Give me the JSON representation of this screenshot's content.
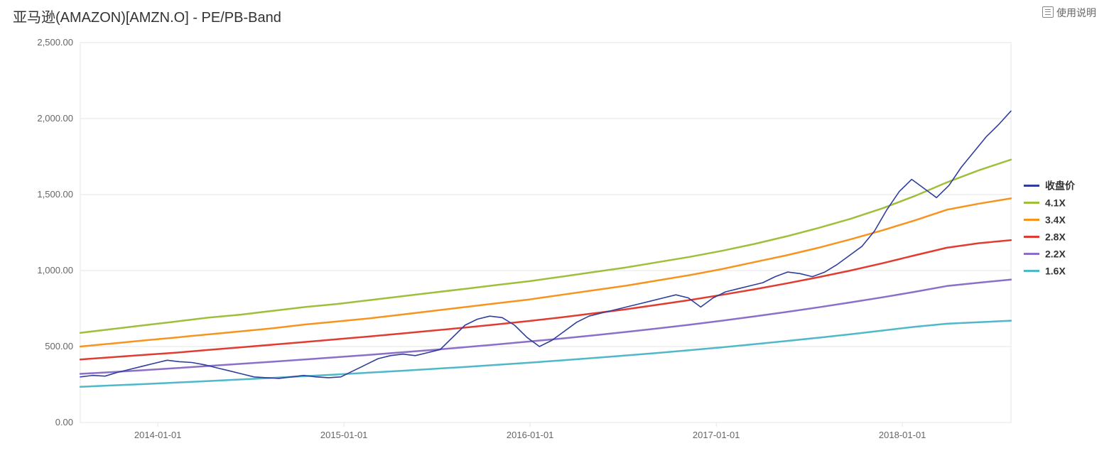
{
  "header": {
    "title": "亚马逊(AMAZON)[AMZN.O] - PE/PB-Band",
    "help_label": "使用说明"
  },
  "chart": {
    "type": "line",
    "background_color": "#ffffff",
    "plot_border_color": "#e6e6e6",
    "grid_color": "#e6e6e6",
    "axis_label_color": "#666666",
    "axis_label_fontsize": 13,
    "line_width_bands": 2.5,
    "line_width_price": 1.6,
    "y_axis": {
      "min": 0,
      "max": 2500,
      "tick_step": 500,
      "tick_labels": [
        "0.00",
        "500.00",
        "1,000.00",
        "1,500.00",
        "2,000.00",
        "2,500.00"
      ]
    },
    "x_axis": {
      "min": 0,
      "max": 60,
      "tick_positions": [
        5,
        17,
        29,
        41,
        53
      ],
      "tick_labels": [
        "2014-01-01",
        "2015-01-01",
        "2016-01-01",
        "2017-01-01",
        "2018-01-01"
      ]
    },
    "legend": {
      "position": "right",
      "item_spacing": 24,
      "swatch_width": 22
    },
    "series": [
      {
        "id": "close",
        "label": "收盘价",
        "color": "#2f3e9e",
        "kind": "price",
        "values": [
          300,
          310,
          305,
          330,
          350,
          370,
          390,
          410,
          400,
          395,
          380,
          360,
          340,
          320,
          300,
          295,
          290,
          300,
          310,
          300,
          295,
          300,
          340,
          380,
          420,
          440,
          450,
          440,
          460,
          480,
          560,
          640,
          680,
          700,
          690,
          640,
          560,
          500,
          540,
          600,
          660,
          700,
          720,
          740,
          760,
          780,
          800,
          820,
          840,
          820,
          760,
          820,
          860,
          880,
          900,
          920,
          960,
          990,
          980,
          960,
          990,
          1040,
          1100,
          1160,
          1260,
          1400,
          1520,
          1600,
          1540,
          1480,
          1560,
          1680,
          1780,
          1880,
          1960,
          2050
        ]
      },
      {
        "id": "band41",
        "label": "4.1X",
        "color": "#9fbf3b",
        "kind": "band",
        "values": [
          590,
          615,
          640,
          665,
          690,
          710,
          735,
          760,
          780,
          805,
          830,
          855,
          880,
          905,
          930,
          960,
          990,
          1020,
          1055,
          1090,
          1130,
          1175,
          1225,
          1280,
          1340,
          1410,
          1490,
          1580,
          1660,
          1730
        ]
      },
      {
        "id": "band34",
        "label": "3.4X",
        "color": "#f7941e",
        "kind": "band",
        "values": [
          500,
          520,
          540,
          560,
          580,
          600,
          620,
          645,
          665,
          685,
          710,
          735,
          760,
          785,
          810,
          840,
          870,
          900,
          935,
          970,
          1010,
          1055,
          1100,
          1150,
          1205,
          1265,
          1330,
          1400,
          1440,
          1475
        ]
      },
      {
        "id": "band28",
        "label": "2.8X",
        "color": "#e03c31",
        "kind": "band",
        "values": [
          415,
          430,
          445,
          460,
          478,
          495,
          512,
          530,
          548,
          566,
          585,
          605,
          625,
          646,
          668,
          692,
          718,
          745,
          775,
          806,
          840,
          876,
          915,
          956,
          1000,
          1048,
          1100,
          1150,
          1180,
          1200
        ]
      },
      {
        "id": "band22",
        "label": "2.2X",
        "color": "#8b6fc9",
        "kind": "band",
        "values": [
          320,
          332,
          345,
          358,
          372,
          386,
          400,
          415,
          430,
          445,
          461,
          478,
          496,
          514,
          533,
          553,
          574,
          596,
          619,
          644,
          670,
          698,
          727,
          758,
          790,
          824,
          860,
          898,
          920,
          940
        ]
      },
      {
        "id": "band16",
        "label": "1.6X",
        "color": "#4fb8c9",
        "kind": "band",
        "values": [
          235,
          244,
          253,
          263,
          273,
          283,
          294,
          305,
          316,
          328,
          340,
          353,
          366,
          380,
          394,
          409,
          425,
          441,
          458,
          476,
          495,
          515,
          536,
          558,
          581,
          605,
          630,
          650,
          660,
          670
        ]
      }
    ]
  }
}
